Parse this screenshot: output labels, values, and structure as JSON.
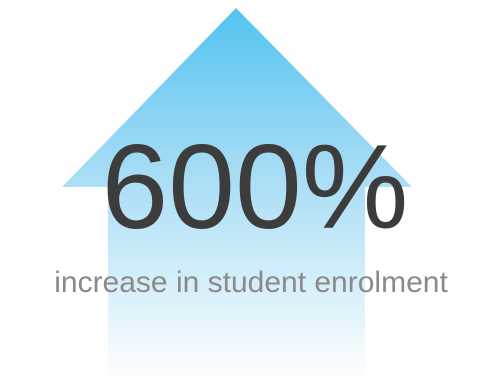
{
  "stat": {
    "value": "600%",
    "caption": "increase in student enrolment"
  }
}
